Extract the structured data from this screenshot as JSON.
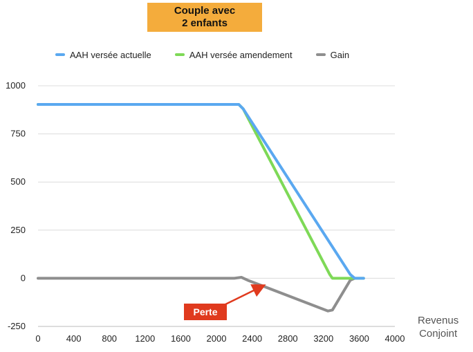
{
  "chart_data": {
    "type": "line",
    "title_lines": [
      "Couple avec",
      "2 enfants"
    ],
    "xlabel_lines": [
      "Revenus",
      "Conjoint"
    ],
    "ylabel": "",
    "xlim": [
      0,
      4000
    ],
    "ylim": [
      -250,
      1000
    ],
    "xticks": [
      0,
      400,
      800,
      1200,
      1600,
      2000,
      2400,
      2800,
      3200,
      3600,
      4000
    ],
    "yticks": [
      1000,
      750,
      500,
      250,
      0,
      -250
    ],
    "grid": "horizontal",
    "legend_position": "top",
    "series": [
      {
        "name": "AAH versée actuelle",
        "color": "#5AA8F0",
        "x": [
          0,
          2250,
          2300,
          3500,
          3550,
          3650
        ],
        "y": [
          903,
          903,
          880,
          20,
          0,
          0
        ]
      },
      {
        "name": "AAH versée amendement",
        "color": "#7ED957",
        "x": [
          0,
          2250,
          2300,
          3270,
          3300,
          3500,
          3550,
          3650
        ],
        "y": [
          903,
          903,
          880,
          20,
          0,
          0,
          0,
          0
        ]
      },
      {
        "name": "Gain",
        "color": "#8E8E8E",
        "x": [
          0,
          2200,
          2280,
          2350,
          3250,
          3300,
          3500,
          3550
        ],
        "y": [
          0,
          0,
          5,
          -10,
          -170,
          -165,
          -10,
          0
        ]
      }
    ],
    "annotations": [
      {
        "text": "Perte",
        "color": "#E03A1E",
        "arrow_to": {
          "x": 2520,
          "y": -40
        }
      }
    ]
  }
}
